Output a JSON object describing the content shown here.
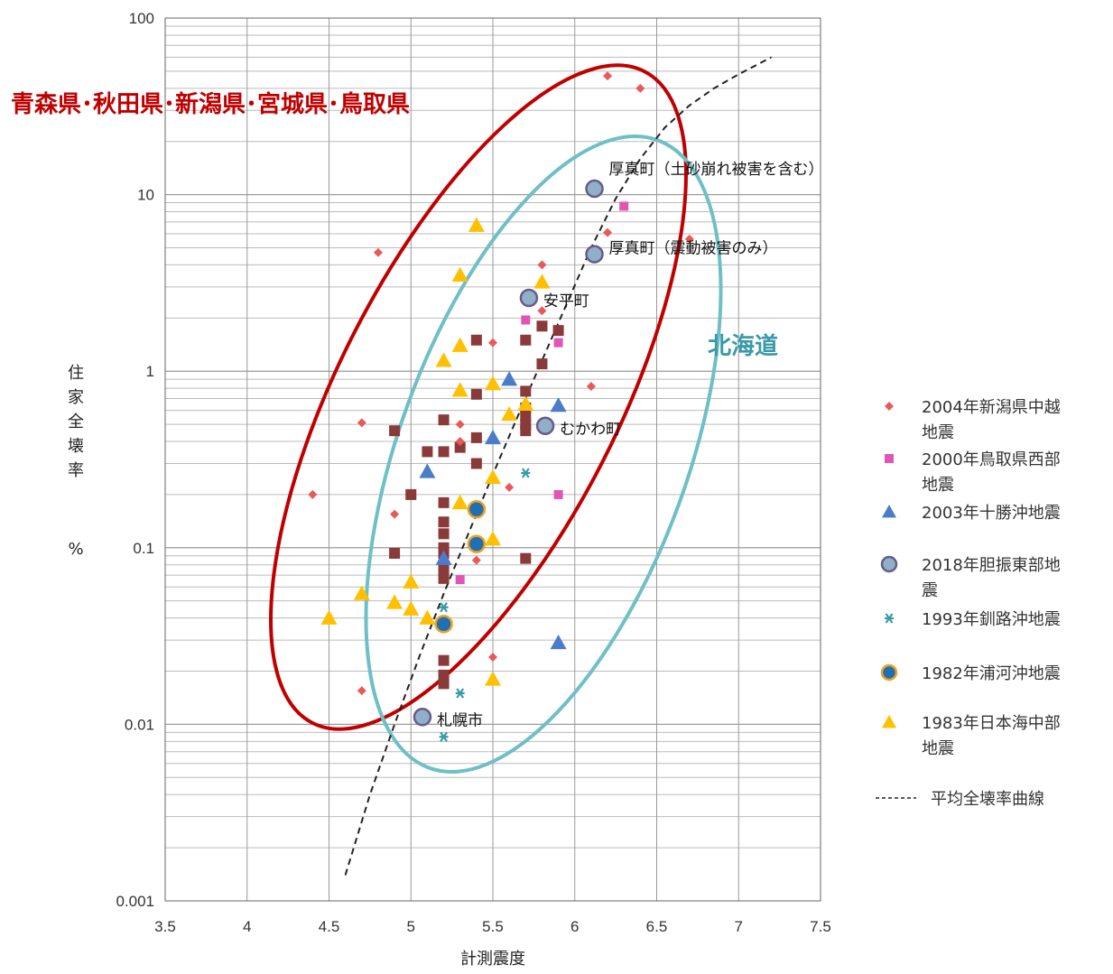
{
  "chart_data": {
    "type": "scatter",
    "xlabel": "計測震度",
    "ylabel": "住家全壊率 %",
    "xlim": [
      3.5,
      7.5
    ],
    "ylim": [
      0.001,
      100
    ],
    "yscale": "log",
    "x_ticks": [
      "3.5",
      "4",
      "4.5",
      "5",
      "5.5",
      "6",
      "6.5",
      "7",
      "7.5"
    ],
    "y_ticks": [
      "0.001",
      "0.01",
      "0.1",
      "1",
      "10",
      "100"
    ],
    "grid": true,
    "legend_position": "right",
    "series": [
      {
        "name": "2004年新潟県中越地震",
        "marker": "diamond",
        "color": "#e85a5a",
        "points": [
          [
            6.2,
            47
          ],
          [
            6.4,
            40
          ],
          [
            6.7,
            5.6
          ],
          [
            4.8,
            4.7
          ],
          [
            5.8,
            4.0
          ],
          [
            6.2,
            6.1
          ],
          [
            5.8,
            2.2
          ],
          [
            5.5,
            1.45
          ],
          [
            6.1,
            0.82
          ],
          [
            4.7,
            0.51
          ],
          [
            5.3,
            0.5
          ],
          [
            5.3,
            0.4
          ],
          [
            5.6,
            0.22
          ],
          [
            4.4,
            0.2
          ],
          [
            4.9,
            0.155
          ],
          [
            5.4,
            0.085
          ],
          [
            5.5,
            0.024
          ],
          [
            4.7,
            0.0155
          ]
        ]
      },
      {
        "name": "2000年鳥取県西部地震",
        "marker": "square",
        "color": "#e055b5",
        "points": [
          [
            6.3,
            8.6
          ],
          [
            5.7,
            1.95
          ],
          [
            5.9,
            1.45
          ],
          [
            5.9,
            0.2
          ],
          [
            5.3,
            0.066
          ]
        ]
      },
      {
        "name": "2003年十勝沖地震",
        "marker": "triangle",
        "color": "#4a7cc9",
        "points": [
          [
            5.6,
            0.9
          ],
          [
            5.9,
            0.64
          ],
          [
            5.5,
            0.42
          ],
          [
            5.1,
            0.27
          ],
          [
            5.2,
            0.087
          ],
          [
            5.9,
            0.029
          ]
        ]
      },
      {
        "name": "2018年胆振東部地震",
        "marker": "circle",
        "color": "#8fb0c8",
        "points": [
          [
            6.12,
            10.8
          ],
          [
            6.12,
            4.6
          ],
          [
            5.72,
            2.6
          ],
          [
            5.82,
            0.49
          ],
          [
            5.07,
            0.011
          ]
        ]
      },
      {
        "name": "1993年釧路沖地震",
        "marker": "star",
        "color": "#3a9aa8",
        "points": [
          [
            5.7,
            0.265
          ],
          [
            5.2,
            0.046
          ],
          [
            5.3,
            0.015
          ],
          [
            5.2,
            0.0085
          ]
        ]
      },
      {
        "name": "1982年浦河沖地震",
        "marker": "circle",
        "color": "#1f6fb5",
        "points": [
          [
            5.4,
            0.165
          ],
          [
            5.4,
            0.105
          ],
          [
            5.2,
            0.037
          ]
        ]
      },
      {
        "name": "1983年日本海中部地震",
        "marker": "triangle",
        "color": "#ffc000",
        "points": [
          [
            5.4,
            6.7
          ],
          [
            5.3,
            3.5
          ],
          [
            5.8,
            3.2
          ],
          [
            5.3,
            1.4
          ],
          [
            5.2,
            1.15
          ],
          [
            5.5,
            0.85
          ],
          [
            5.3,
            0.78
          ],
          [
            5.7,
            0.65
          ],
          [
            5.6,
            0.57
          ],
          [
            5.5,
            0.25
          ],
          [
            5.3,
            0.18
          ],
          [
            5.5,
            0.112
          ],
          [
            5.0,
            0.064
          ],
          [
            4.7,
            0.055
          ],
          [
            4.9,
            0.049
          ],
          [
            5.0,
            0.045
          ],
          [
            5.1,
            0.04
          ],
          [
            4.5,
            0.04
          ],
          [
            5.5,
            0.018
          ]
        ]
      },
      {
        "name": "平均全壊率曲線",
        "style": "dashed",
        "color": "#222222",
        "points": [
          [
            4.6,
            0.0014
          ],
          [
            4.75,
            0.004
          ],
          [
            4.9,
            0.01
          ],
          [
            5.05,
            0.024
          ],
          [
            5.2,
            0.055
          ],
          [
            5.35,
            0.12
          ],
          [
            5.5,
            0.26
          ],
          [
            5.65,
            0.55
          ],
          [
            5.8,
            1.15
          ],
          [
            5.95,
            2.4
          ],
          [
            6.1,
            5
          ],
          [
            6.25,
            9.5
          ],
          [
            6.4,
            16
          ],
          [
            6.55,
            24
          ],
          [
            6.7,
            32
          ],
          [
            6.85,
            40
          ],
          [
            7.0,
            48
          ],
          [
            7.2,
            60
          ]
        ]
      }
    ],
    "unlabeled_points": {
      "color": "#8b3a3a",
      "marker": "square",
      "points": [
        [
          5.7,
          1.5
        ],
        [
          5.4,
          1.5
        ],
        [
          5.8,
          1.8
        ],
        [
          5.9,
          1.7
        ],
        [
          5.8,
          1.1
        ],
        [
          5.7,
          0.77
        ],
        [
          5.4,
          0.74
        ],
        [
          5.7,
          0.62
        ],
        [
          5.7,
          0.56
        ],
        [
          5.7,
          0.5
        ],
        [
          5.7,
          0.46
        ],
        [
          5.2,
          0.53
        ],
        [
          4.9,
          0.46
        ],
        [
          5.4,
          0.42
        ],
        [
          5.3,
          0.37
        ],
        [
          5.1,
          0.35
        ],
        [
          5.2,
          0.35
        ],
        [
          5.4,
          0.3
        ],
        [
          5.0,
          0.2
        ],
        [
          5.2,
          0.18
        ],
        [
          5.2,
          0.14
        ],
        [
          5.2,
          0.12
        ],
        [
          5.2,
          0.1
        ],
        [
          4.9,
          0.093
        ],
        [
          5.2,
          0.093
        ],
        [
          5.2,
          0.08
        ],
        [
          5.7,
          0.087
        ],
        [
          5.2,
          0.074
        ],
        [
          5.2,
          0.067
        ],
        [
          5.2,
          0.023
        ],
        [
          5.2,
          0.019
        ],
        [
          5.2,
          0.017
        ]
      ]
    },
    "point_labels": [
      {
        "text": "厚真町（土砂崩れ被害を含む）",
        "x": 6.12,
        "y": 10.8
      },
      {
        "text": "厚真町（震動被害のみ）",
        "x": 6.12,
        "y": 4.6
      },
      {
        "text": "安平町",
        "x": 5.72,
        "y": 2.6
      },
      {
        "text": "むかわ町",
        "x": 5.82,
        "y": 0.49
      },
      {
        "text": "札幌市",
        "x": 5.07,
        "y": 0.011
      }
    ],
    "annotations": [
      {
        "text": "青森県･秋田県･新潟県･宮城県･鳥取県",
        "color": "#c00000"
      },
      {
        "text": "北海道",
        "color": "#3a9aa8"
      }
    ]
  },
  "legend": {
    "items": [
      {
        "label": "2004年新潟県中越地震"
      },
      {
        "label": "2000年鳥取県西部地震"
      },
      {
        "label": "2003年十勝沖地震"
      },
      {
        "label": "2018年胆振東部地震"
      },
      {
        "label": "1993年釧路沖地震"
      },
      {
        "label": "1982年浦河沖地震"
      },
      {
        "label": "1983年日本海中部地震"
      },
      {
        "label": "平均全壊率曲線"
      }
    ]
  }
}
